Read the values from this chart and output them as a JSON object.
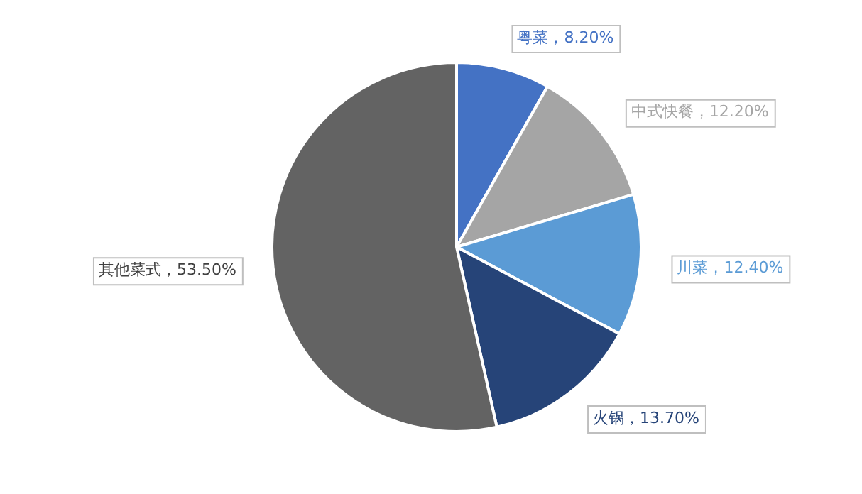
{
  "chart_data": {
    "type": "pie",
    "categories": [
      "粤菜",
      "中式快餐",
      "川菜",
      "火锅",
      "其他菜式"
    ],
    "values": [
      8.2,
      12.2,
      12.4,
      13.7,
      53.5
    ],
    "value_labels": [
      "8.20%",
      "12.20%",
      "12.40%",
      "13.70%",
      "53.50%"
    ],
    "colors": [
      "#4472c4",
      "#a5a5a5",
      "#5b9bd5",
      "#264478",
      "#636363"
    ],
    "legend": false
  }
}
